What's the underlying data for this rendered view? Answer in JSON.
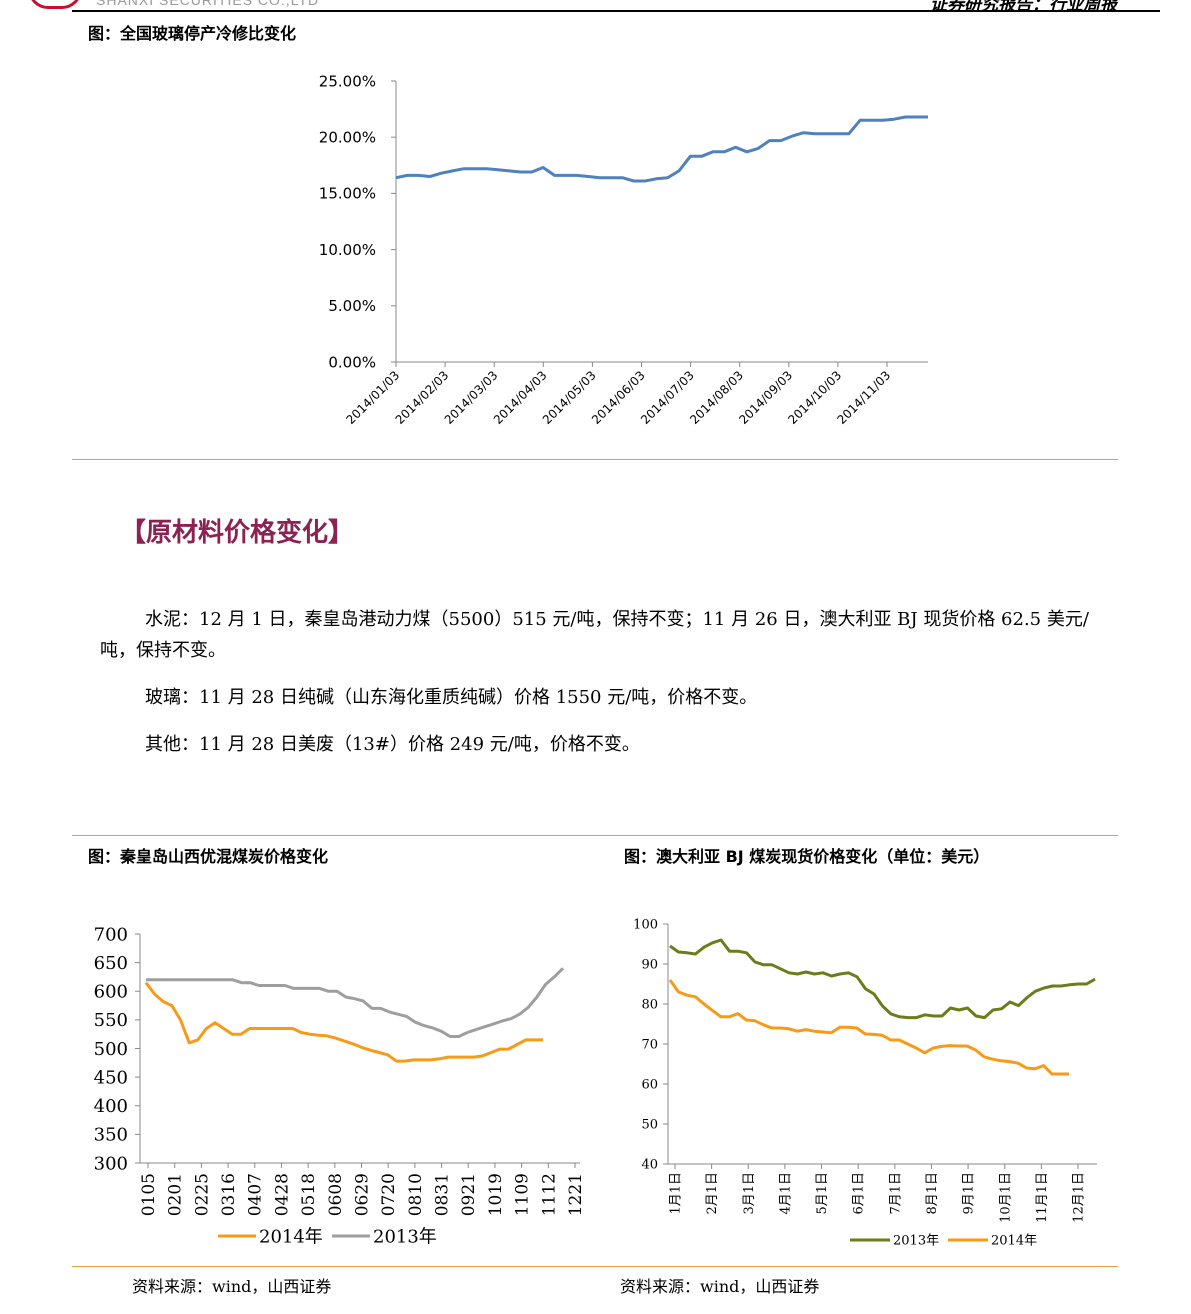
{
  "header": {
    "left_text": "SHANXI SECURITIES CO.,LTD",
    "right_text": "证券研究报告：行业周报"
  },
  "figure1": {
    "title": "图：全国玻璃停产冷修比变化"
  },
  "section": {
    "title": "【原材料价格变化】"
  },
  "paragraphs": {
    "cement": "水泥：12 月 1 日，秦皇岛港动力煤（5500）515 元/吨，保持不变；11 月 26 日，澳大利亚 BJ 现货价格 62.5 美元/吨，保持不变。",
    "glass": "玻璃：11 月 28 日纯碱（山东海化重质纯碱）价格 1550 元/吨，价格不变。",
    "other": "其他：11 月 28 日美废（13#）价格 249 元/吨，价格不变。"
  },
  "figure2": {
    "title": "图：秦皇岛山西优混煤炭价格变化",
    "source": "资料来源：wind，山西证券"
  },
  "figure3": {
    "title": "图：澳大利亚 BJ 煤炭现货价格变化（单位：美元）",
    "source": "资料来源：wind，山西证券"
  },
  "chart_data": [
    {
      "type": "line",
      "title": "",
      "y_tick_labels": [
        "0.00%",
        "5.00%",
        "10.00%",
        "15.00%",
        "20.00%",
        "25.00%"
      ],
      "ylim": [
        0,
        25
      ],
      "x_tick_labels": [
        "2014/01/03",
        "2014/02/03",
        "2014/03/03",
        "2014/04/03",
        "2014/05/03",
        "2014/06/03",
        "2014/07/03",
        "2014/08/03",
        "2014/09/03",
        "2014/10/03",
        "2014/11/03"
      ],
      "grid": false,
      "series": [
        {
          "color": "#4f81bd",
          "values": [
            16.4,
            16.6,
            16.6,
            16.5,
            16.8,
            17.0,
            17.2,
            17.2,
            17.2,
            17.1,
            17.0,
            16.9,
            16.9,
            17.3,
            16.6,
            16.6,
            16.6,
            16.5,
            16.4,
            16.4,
            16.4,
            16.1,
            16.1,
            16.3,
            16.4,
            17.0,
            18.3,
            18.3,
            18.7,
            18.7,
            19.1,
            18.7,
            19.0,
            19.7,
            19.7,
            20.1,
            20.4,
            20.3,
            20.3,
            20.3,
            20.3,
            21.5,
            21.5,
            21.5,
            21.6,
            21.8,
            21.8,
            21.8
          ]
        }
      ]
    },
    {
      "type": "line",
      "title": "",
      "y_tick_labels": [
        "300",
        "350",
        "400",
        "450",
        "500",
        "550",
        "600",
        "650",
        "700"
      ],
      "ylim": [
        300,
        700
      ],
      "x_tick_labels": [
        "0105",
        "0201",
        "0225",
        "0316",
        "0407",
        "0428",
        "0518",
        "0608",
        "0629",
        "0720",
        "0810",
        "0831",
        "0921",
        "1019",
        "1109",
        "1112",
        "1221"
      ],
      "grid": false,
      "legend": "bottom",
      "series": [
        {
          "name": "2014年",
          "color": "#f79a18",
          "values": [
            615,
            595,
            582,
            575,
            550,
            510,
            515,
            535,
            545,
            535,
            525,
            525,
            535,
            535,
            535,
            535,
            535,
            535,
            528,
            525,
            523,
            522,
            518,
            513,
            508,
            502,
            497,
            493,
            489,
            478,
            478,
            480,
            480,
            480,
            482,
            485,
            485,
            485,
            485,
            487,
            493,
            499,
            499,
            507,
            515,
            515,
            515
          ]
        },
        {
          "name": "2013年",
          "color": "#9e9e9e",
          "values": [
            620,
            620,
            620,
            620,
            620,
            620,
            620,
            620,
            620,
            620,
            620,
            615,
            615,
            610,
            610,
            610,
            610,
            605,
            605,
            605,
            605,
            600,
            600,
            590,
            587,
            583,
            570,
            570,
            564,
            560,
            556,
            546,
            540,
            536,
            530,
            521,
            521,
            528,
            533,
            538,
            543,
            548,
            552,
            560,
            572,
            590,
            612,
            625,
            640
          ]
        }
      ]
    },
    {
      "type": "line",
      "title": "",
      "y_tick_labels": [
        "40",
        "50",
        "60",
        "70",
        "80",
        "90",
        "100"
      ],
      "ylim": [
        40,
        100
      ],
      "x_tick_labels": [
        "1月1日",
        "2月1日",
        "3月1日",
        "4月1日",
        "5月1日",
        "6月1日",
        "7月1日",
        "8月1日",
        "9月1日",
        "10月1日",
        "11月1日",
        "12月1日"
      ],
      "grid": false,
      "legend": "bottom",
      "series": [
        {
          "name": "2013年",
          "color": "#6b7d1a",
          "values": [
            94.5,
            93.0,
            92.8,
            92.5,
            94.2,
            95.3,
            96.0,
            93.2,
            93.2,
            92.8,
            90.5,
            89.8,
            89.8,
            88.8,
            87.8,
            87.5,
            88.0,
            87.5,
            87.8,
            87.0,
            87.5,
            87.8,
            86.8,
            83.8,
            82.5,
            79.5,
            77.5,
            76.8,
            76.6,
            76.6,
            77.3,
            77.0,
            77.0,
            79.0,
            78.5,
            79.0,
            77.0,
            76.6,
            78.5,
            78.8,
            80.5,
            79.6,
            81.6,
            83.2,
            84.0,
            84.5,
            84.5,
            84.8,
            85.0,
            85.0,
            86.2
          ]
        },
        {
          "name": "2014年",
          "color": "#f79a18",
          "values": [
            86.0,
            83.0,
            82.2,
            81.8,
            80.0,
            78.4,
            76.8,
            76.8,
            77.6,
            76.0,
            75.8,
            74.8,
            74.0,
            74.0,
            73.8,
            73.2,
            73.6,
            73.2,
            73.0,
            72.8,
            74.2,
            74.2,
            74.0,
            72.5,
            72.4,
            72.2,
            71.0,
            71.0,
            70.0,
            69.0,
            67.8,
            69.0,
            69.4,
            69.6,
            69.5,
            69.5,
            68.5,
            66.8,
            66.2,
            65.8,
            65.6,
            65.2,
            64.0,
            63.8,
            64.6,
            62.5,
            62.5,
            62.5
          ]
        }
      ]
    }
  ]
}
